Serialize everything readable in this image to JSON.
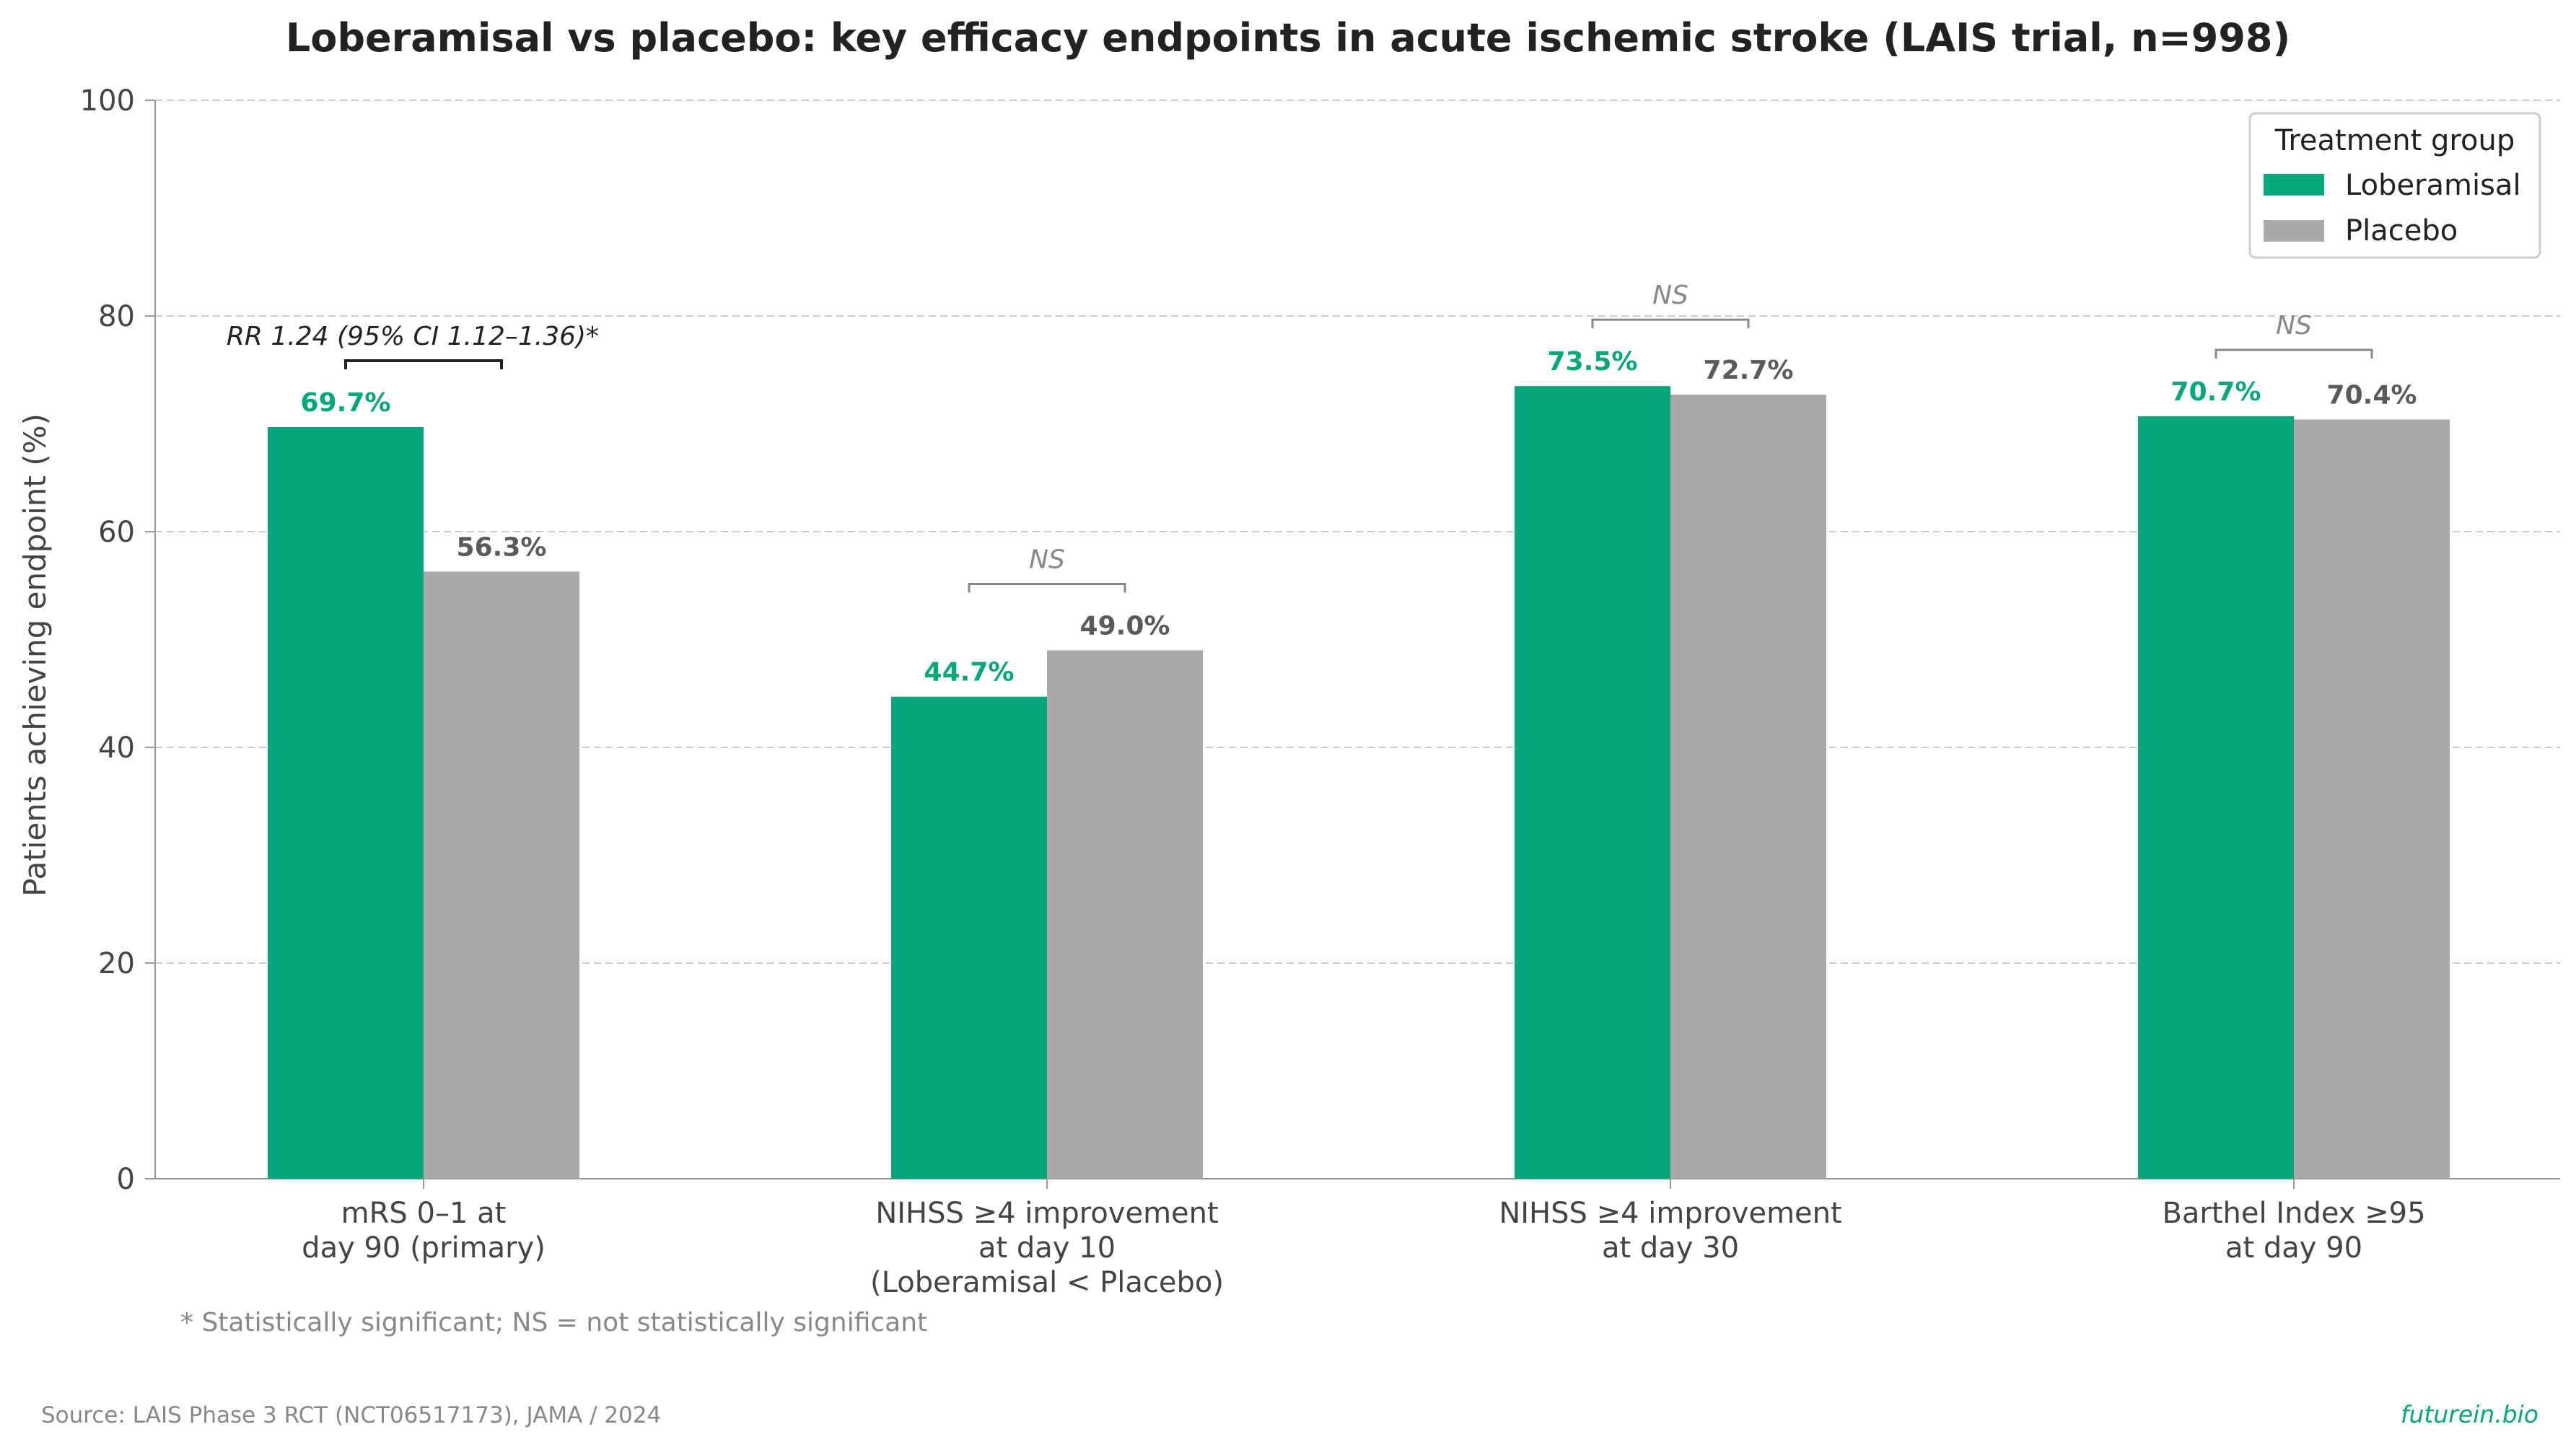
{
  "chart_data": {
    "type": "bar",
    "title": "Loberamisal vs placebo: key efficacy endpoints in acute ischemic stroke (LAIS trial, n=998)",
    "ylabel": "Patients achieving endpoint (%)",
    "xlabel": "",
    "ylim": [
      0,
      100
    ],
    "yticks": [
      0,
      20,
      40,
      60,
      80,
      100
    ],
    "grid": "horizontal dashed",
    "categories": [
      [
        "mRS 0–1 at",
        "day 90 (primary)"
      ],
      [
        "NIHSS ≥4 improvement",
        "at day 10",
        "(Loberamisal < Placebo)"
      ],
      [
        "NIHSS ≥4 improvement",
        "at day 30"
      ],
      [
        "Barthel Index ≥95",
        "at day 90"
      ]
    ],
    "series": [
      {
        "name": "Loberamisal",
        "color": "#04a87c",
        "values": [
          69.7,
          44.7,
          73.5,
          70.7
        ],
        "labels": [
          "69.7%",
          "44.7%",
          "73.5%",
          "70.7%"
        ]
      },
      {
        "name": "Placebo",
        "color": "#a9a9a9",
        "values": [
          56.3,
          49.0,
          72.7,
          70.4
        ],
        "labels": [
          "56.3%",
          "49.0%",
          "72.7%",
          "70.4%"
        ]
      }
    ],
    "legend": {
      "title": "Treatment group",
      "position": "top-right"
    },
    "annotations": [
      {
        "category": 0,
        "text": "RR 1.24 (95% CI 1.12–1.36)*",
        "significant": true
      },
      {
        "category": 1,
        "text": "NS",
        "significant": false
      },
      {
        "category": 2,
        "text": "NS",
        "significant": false
      },
      {
        "category": 3,
        "text": "NS",
        "significant": false
      }
    ],
    "footnote": "* Statistically significant; NS = not statistically significant",
    "source": "Source: LAIS Phase 3 RCT (NCT06517173), JAMA / 2024",
    "brand": "futurein.bio",
    "colors": {
      "loberamisal_label": "#04a87c",
      "placebo_label": "#5a5a5a",
      "ns": "#888888",
      "sig": "#222222",
      "brand": "#04a87c"
    }
  }
}
